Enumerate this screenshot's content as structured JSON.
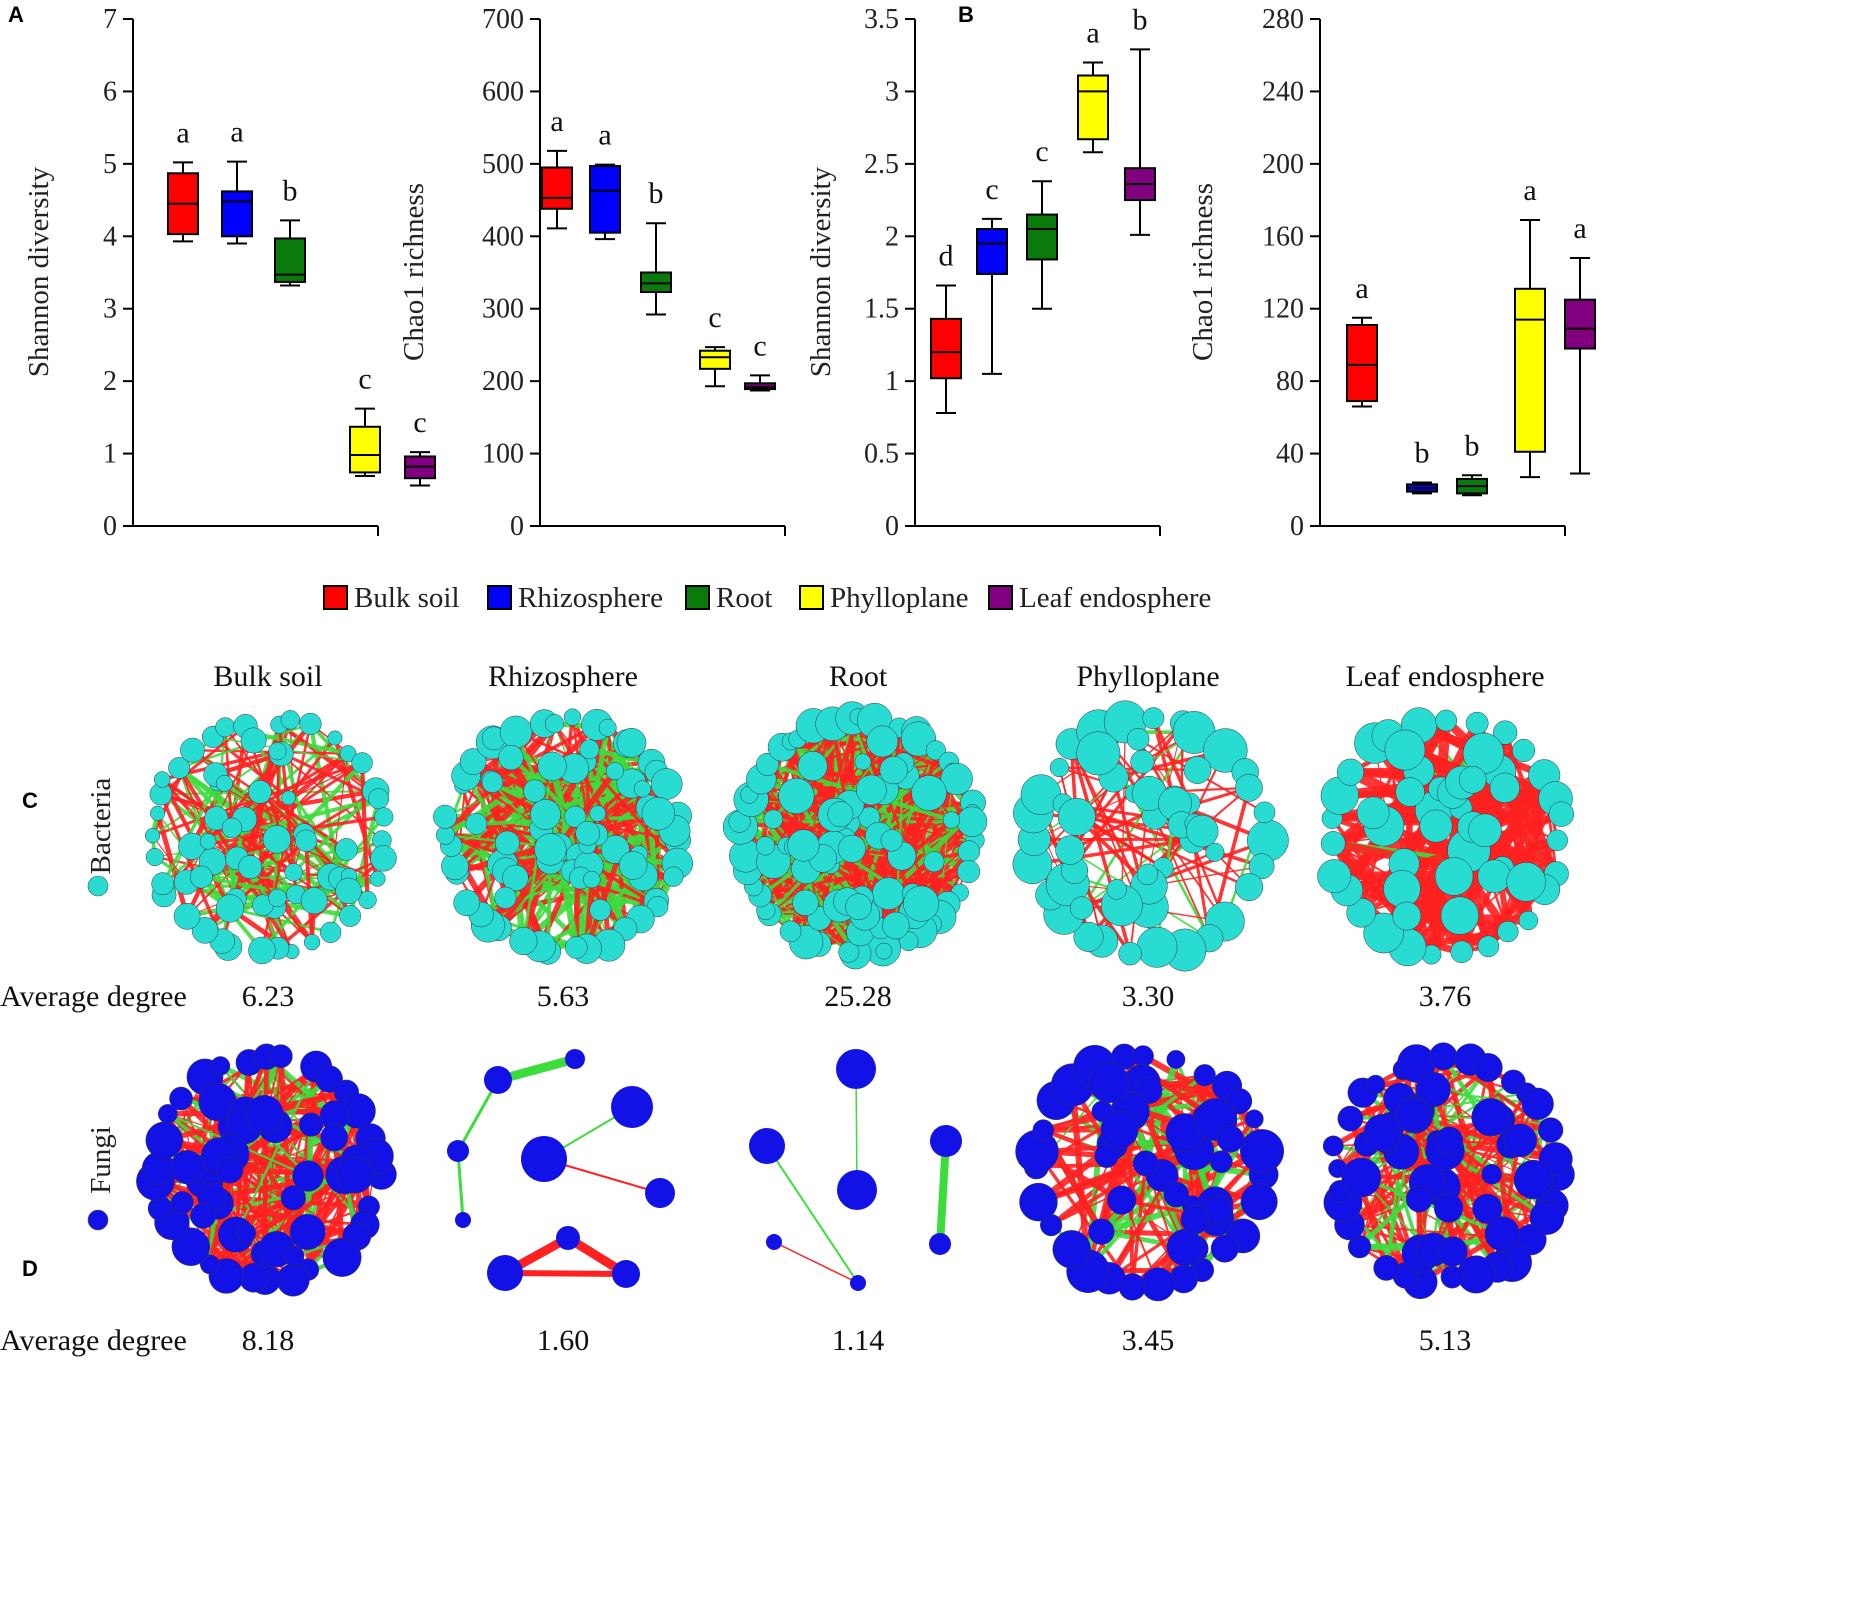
{
  "chart_data": [
    {
      "type": "box",
      "panel": "A",
      "ylabel": "Shannon diversity",
      "ylim": [
        0,
        7
      ],
      "yticks": [
        "0",
        "1",
        "2",
        "3",
        "4",
        "5",
        "6",
        "7"
      ],
      "boxes": [
        {
          "group": "Bulk soil",
          "min": 3.93,
          "q1": 4.03,
          "median": 4.45,
          "q3": 4.87,
          "max": 5.02,
          "letter": "a"
        },
        {
          "group": "Rhizosphere",
          "min": 3.9,
          "q1": 4.0,
          "median": 4.48,
          "q3": 4.62,
          "max": 5.03,
          "letter": "a"
        },
        {
          "group": "Root",
          "min": 3.32,
          "q1": 3.37,
          "median": 3.47,
          "q3": 3.97,
          "max": 4.22,
          "letter": "b"
        },
        {
          "group": "Phylloplane",
          "min": 0.69,
          "q1": 0.74,
          "median": 0.98,
          "q3": 1.37,
          "max": 1.62,
          "letter": "c"
        },
        {
          "group": "Leaf endosphere",
          "min": 0.56,
          "q1": 0.66,
          "median": 0.82,
          "q3": 0.96,
          "max": 1.02,
          "letter": "c"
        }
      ]
    },
    {
      "type": "box",
      "panel": "A",
      "ylabel": "Chao1 richness",
      "ylim": [
        0,
        700
      ],
      "yticks": [
        "0",
        "100",
        "200",
        "300",
        "400",
        "500",
        "600",
        "700"
      ],
      "boxes": [
        {
          "group": "Bulk soil",
          "min": 411,
          "q1": 438,
          "median": 453,
          "q3": 495,
          "max": 518,
          "letter": "a"
        },
        {
          "group": "Rhizosphere",
          "min": 396,
          "q1": 405,
          "median": 463,
          "q3": 497,
          "max": 499,
          "letter": "a"
        },
        {
          "group": "Root",
          "min": 292,
          "q1": 323,
          "median": 335,
          "q3": 350,
          "max": 418,
          "letter": "b"
        },
        {
          "group": "Phylloplane",
          "min": 193,
          "q1": 217,
          "median": 233,
          "q3": 242,
          "max": 247,
          "letter": "c"
        },
        {
          "group": "Leaf endosphere",
          "min": 187,
          "q1": 189,
          "median": 192,
          "q3": 197,
          "max": 208,
          "letter": "c"
        }
      ]
    },
    {
      "type": "box",
      "panel": "B",
      "ylabel": "Shannon diversity",
      "ylim": [
        0,
        3.5
      ],
      "yticks": [
        "0",
        "0.5",
        "1",
        "1.5",
        "2",
        "2.5",
        "3",
        "3.5"
      ],
      "boxes": [
        {
          "group": "Bulk soil",
          "min": 0.78,
          "q1": 1.02,
          "median": 1.2,
          "q3": 1.43,
          "max": 1.66,
          "letter": "d"
        },
        {
          "group": "Rhizosphere",
          "min": 1.05,
          "q1": 1.74,
          "median": 1.95,
          "q3": 2.05,
          "max": 2.12,
          "letter": "c"
        },
        {
          "group": "Root",
          "min": 1.5,
          "q1": 1.84,
          "median": 2.05,
          "q3": 2.15,
          "max": 2.38,
          "letter": "c"
        },
        {
          "group": "Phylloplane",
          "min": 2.58,
          "q1": 2.67,
          "median": 3.0,
          "q3": 3.11,
          "max": 3.2,
          "letter": "a"
        },
        {
          "group": "Leaf endosphere",
          "min": 2.01,
          "q1": 2.25,
          "median": 2.36,
          "q3": 2.47,
          "max": 3.29,
          "letter": "b"
        }
      ]
    },
    {
      "type": "box",
      "panel": "B",
      "ylabel": "Chao1 richness",
      "ylim": [
        0,
        280
      ],
      "yticks": [
        "0",
        "40",
        "80",
        "120",
        "160",
        "200",
        "240",
        "280"
      ],
      "boxes": [
        {
          "group": "Bulk soil",
          "min": 66,
          "q1": 69,
          "median": 89,
          "q3": 111,
          "max": 115,
          "letter": "a"
        },
        {
          "group": "Rhizosphere",
          "min": 18,
          "q1": 19,
          "median": 21,
          "q3": 23,
          "max": 24,
          "letter": "b"
        },
        {
          "group": "Root",
          "min": 17,
          "q1": 18,
          "median": 22,
          "q3": 26,
          "max": 28,
          "letter": "b"
        },
        {
          "group": "Phylloplane",
          "min": 27,
          "q1": 41,
          "median": 114,
          "q3": 131,
          "max": 169,
          "letter": "a"
        },
        {
          "group": "Leaf endosphere",
          "min": 29,
          "q1": 98,
          "median": 109,
          "q3": 125,
          "max": 148,
          "letter": "a"
        }
      ]
    }
  ],
  "legend": [
    {
      "label": "Bulk  soil",
      "color": "#ff0000"
    },
    {
      "label": "Rhizosphere",
      "color": "#0000ff"
    },
    {
      "label": "Root",
      "color": "#0a7a0a"
    },
    {
      "label": "Phylloplane",
      "color": "#ffff00"
    },
    {
      "label": "Leaf  endosphere",
      "color": "#800080"
    }
  ],
  "panel_labels": [
    "A",
    "B",
    "C",
    "D"
  ],
  "networks": {
    "columns": [
      "Bulk soil",
      "Rhizosphere",
      "Root",
      "Phylloplane",
      "Leaf endosphere"
    ],
    "degree_label": "Average degree",
    "positive_color": "#ff2020",
    "negative_color": "#3ddc3d",
    "rows": [
      {
        "name": "Bacteria",
        "node_color": "#28dcd2",
        "degrees": [
          "6.23",
          "5.63",
          "25.28",
          "3.30",
          "3.76"
        ]
      },
      {
        "name": "Fungi",
        "node_color": "#1212e6",
        "degrees": [
          "8.18",
          "1.60",
          "1.14",
          "3.45",
          "5.13"
        ]
      }
    ]
  }
}
